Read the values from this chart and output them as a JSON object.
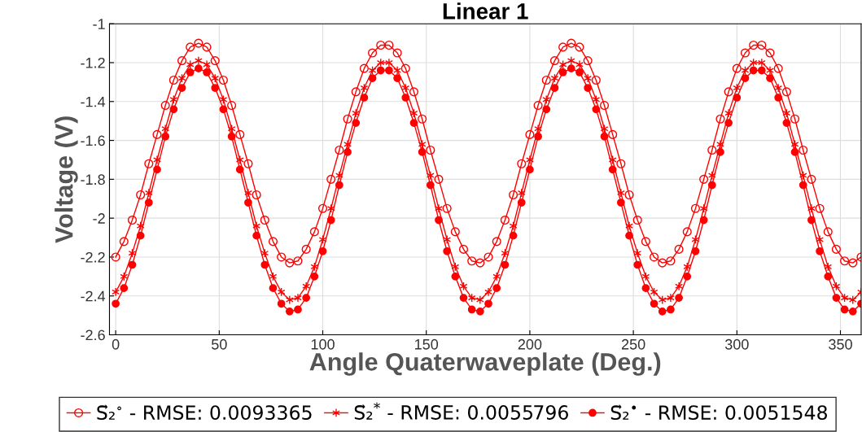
{
  "chart_data": {
    "type": "line",
    "title": "Linear 1",
    "xlabel": "Angle Quaterwaveplate (Deg.)",
    "ylabel": "Voltage (V)",
    "x": [
      0,
      4,
      8,
      12,
      16,
      20,
      24,
      28,
      32,
      36,
      40,
      44,
      48,
      52,
      56,
      60,
      64,
      68,
      72,
      76,
      80,
      84,
      88,
      92,
      96,
      100,
      104,
      108,
      112,
      116,
      120,
      124,
      128,
      132,
      136,
      140,
      144,
      148,
      152,
      156,
      160,
      164,
      168,
      172,
      176,
      180,
      184,
      188,
      192,
      196,
      200,
      204,
      208,
      212,
      216,
      220,
      224,
      228,
      232,
      236,
      240,
      244,
      248,
      252,
      256,
      260,
      264,
      268,
      272,
      276,
      280,
      284,
      288,
      292,
      296,
      300,
      304,
      308,
      312,
      316,
      320,
      324,
      328,
      332,
      336,
      340,
      344,
      348,
      352,
      356,
      360
    ],
    "series": [
      {
        "name": "S⃗₂$^{∘}$ - RMSE: 0.0093365",
        "color": "#ff0000",
        "marker": "circle",
        "values": [
          -2.2,
          -2.12,
          -2.01,
          -1.88,
          -1.72,
          -1.57,
          -1.42,
          -1.29,
          -1.19,
          -1.12,
          -1.1,
          -1.12,
          -1.19,
          -1.29,
          -1.42,
          -1.57,
          -1.72,
          -1.88,
          -2.01,
          -2.12,
          -2.2,
          -2.23,
          -2.22,
          -2.16,
          -2.07,
          -1.95,
          -1.8,
          -1.65,
          -1.49,
          -1.35,
          -1.23,
          -1.15,
          -1.11,
          -1.11,
          -1.15,
          -1.23,
          -1.35,
          -1.49,
          -1.65,
          -1.8,
          -1.95,
          -2.07,
          -2.16,
          -2.22,
          -2.23,
          -2.2,
          -2.12,
          -2.01,
          -1.88,
          -1.72,
          -1.57,
          -1.42,
          -1.29,
          -1.19,
          -1.12,
          -1.1,
          -1.12,
          -1.19,
          -1.29,
          -1.42,
          -1.57,
          -1.72,
          -1.88,
          -2.01,
          -2.12,
          -2.2,
          -2.23,
          -2.22,
          -2.16,
          -2.07,
          -1.95,
          -1.8,
          -1.65,
          -1.49,
          -1.35,
          -1.23,
          -1.15,
          -1.11,
          -1.11,
          -1.15,
          -1.23,
          -1.35,
          -1.49,
          -1.65,
          -1.8,
          -1.95,
          -2.07,
          -2.16,
          -2.22,
          -2.23,
          -2.2
        ]
      },
      {
        "name": "S⃗₂$^{*}$ - RMSE: 0.0055796",
        "color": "#ff0000",
        "marker": "cross",
        "values": [
          -2.38,
          -2.3,
          -2.18,
          -2.04,
          -1.87,
          -1.7,
          -1.54,
          -1.39,
          -1.28,
          -1.21,
          -1.19,
          -1.21,
          -1.28,
          -1.39,
          -1.54,
          -1.7,
          -1.87,
          -2.04,
          -2.18,
          -2.3,
          -2.38,
          -2.42,
          -2.41,
          -2.35,
          -2.25,
          -2.11,
          -1.95,
          -1.78,
          -1.62,
          -1.46,
          -1.33,
          -1.24,
          -1.2,
          -1.2,
          -1.24,
          -1.33,
          -1.46,
          -1.62,
          -1.78,
          -1.95,
          -2.11,
          -2.25,
          -2.35,
          -2.41,
          -2.42,
          -2.38,
          -2.3,
          -2.18,
          -2.04,
          -1.87,
          -1.7,
          -1.54,
          -1.39,
          -1.28,
          -1.21,
          -1.19,
          -1.21,
          -1.28,
          -1.39,
          -1.54,
          -1.7,
          -1.87,
          -2.04,
          -2.18,
          -2.3,
          -2.38,
          -2.42,
          -2.41,
          -2.35,
          -2.25,
          -2.11,
          -1.95,
          -1.78,
          -1.62,
          -1.46,
          -1.33,
          -1.24,
          -1.2,
          -1.2,
          -1.24,
          -1.33,
          -1.46,
          -1.62,
          -1.78,
          -1.95,
          -2.11,
          -2.25,
          -2.35,
          -2.41,
          -2.42,
          -2.38
        ]
      },
      {
        "name": "S⃗₂$^{•}$ - RMSE: 0.0051548",
        "color": "#ff0000",
        "marker": "circle",
        "values": [
          -2.44,
          -2.36,
          -2.24,
          -2.09,
          -1.92,
          -1.75,
          -1.58,
          -1.44,
          -1.33,
          -1.25,
          -1.23,
          -1.25,
          -1.33,
          -1.44,
          -1.58,
          -1.75,
          -1.92,
          -2.09,
          -2.24,
          -2.36,
          -2.44,
          -2.48,
          -2.47,
          -2.41,
          -2.3,
          -2.17,
          -2.01,
          -1.83,
          -1.66,
          -1.51,
          -1.38,
          -1.28,
          -1.24,
          -1.24,
          -1.28,
          -1.38,
          -1.51,
          -1.66,
          -1.83,
          -2.01,
          -2.17,
          -2.3,
          -2.41,
          -2.47,
          -2.48,
          -2.44,
          -2.36,
          -2.24,
          -2.09,
          -1.92,
          -1.75,
          -1.58,
          -1.44,
          -1.33,
          -1.25,
          -1.23,
          -1.25,
          -1.33,
          -1.44,
          -1.58,
          -1.75,
          -1.92,
          -2.09,
          -2.24,
          -2.36,
          -2.44,
          -2.48,
          -2.47,
          -2.41,
          -2.3,
          -2.17,
          -2.01,
          -1.83,
          -1.66,
          -1.51,
          -1.38,
          -1.28,
          -1.24,
          -1.24,
          -1.28,
          -1.38,
          -1.51,
          -1.66,
          -1.83,
          -2.01,
          -2.17,
          -2.3,
          -2.41,
          -2.47,
          -2.48,
          -2.44
        ]
      }
    ],
    "xlim": [
      -3,
      360
    ],
    "xticks": [
      0,
      50,
      100,
      150,
      200,
      250,
      300,
      350
    ],
    "ylim": [
      -2.6,
      -1
    ],
    "yticks": [
      -2.6,
      -2.4,
      -2.2,
      -2,
      -1.8,
      -1.6,
      -1.4,
      -1.2,
      -1
    ],
    "grid": true,
    "legend": "bottom",
    "line_style": "solid"
  }
}
